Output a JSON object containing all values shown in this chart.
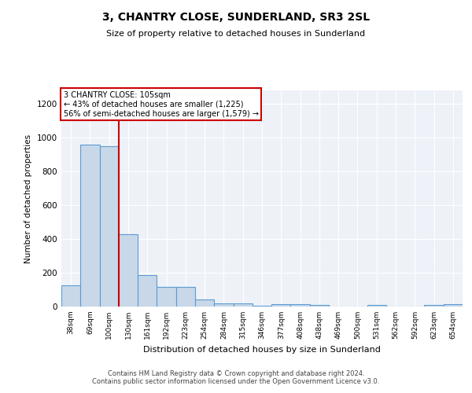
{
  "title1": "3, CHANTRY CLOSE, SUNDERLAND, SR3 2SL",
  "title2": "Size of property relative to detached houses in Sunderland",
  "xlabel": "Distribution of detached houses by size in Sunderland",
  "ylabel": "Number of detached properties",
  "footer1": "Contains HM Land Registry data © Crown copyright and database right 2024.",
  "footer2": "Contains public sector information licensed under the Open Government Licence v3.0.",
  "annotation_line1": "3 CHANTRY CLOSE: 105sqm",
  "annotation_line2": "← 43% of detached houses are smaller (1,225)",
  "annotation_line3": "56% of semi-detached houses are larger (1,579) →",
  "bar_labels": [
    "38sqm",
    "69sqm",
    "100sqm",
    "130sqm",
    "161sqm",
    "192sqm",
    "223sqm",
    "254sqm",
    "284sqm",
    "315sqm",
    "346sqm",
    "377sqm",
    "408sqm",
    "438sqm",
    "469sqm",
    "500sqm",
    "531sqm",
    "562sqm",
    "592sqm",
    "623sqm",
    "654sqm"
  ],
  "bar_values": [
    125,
    958,
    950,
    428,
    185,
    115,
    115,
    42,
    20,
    18,
    5,
    13,
    13,
    8,
    2,
    0,
    10,
    2,
    0,
    8,
    12
  ],
  "bar_color": "#c8d8e8",
  "bar_edge_color": "#5b9bd5",
  "vline_x_index": 2.5,
  "vline_color": "#cc0000",
  "annotation_box_color": "#cc0000",
  "background_color": "#eef2f8",
  "ylim": [
    0,
    1280
  ],
  "yticks": [
    0,
    200,
    400,
    600,
    800,
    1000,
    1200
  ],
  "fig_width": 6.0,
  "fig_height": 5.0,
  "dpi": 100
}
